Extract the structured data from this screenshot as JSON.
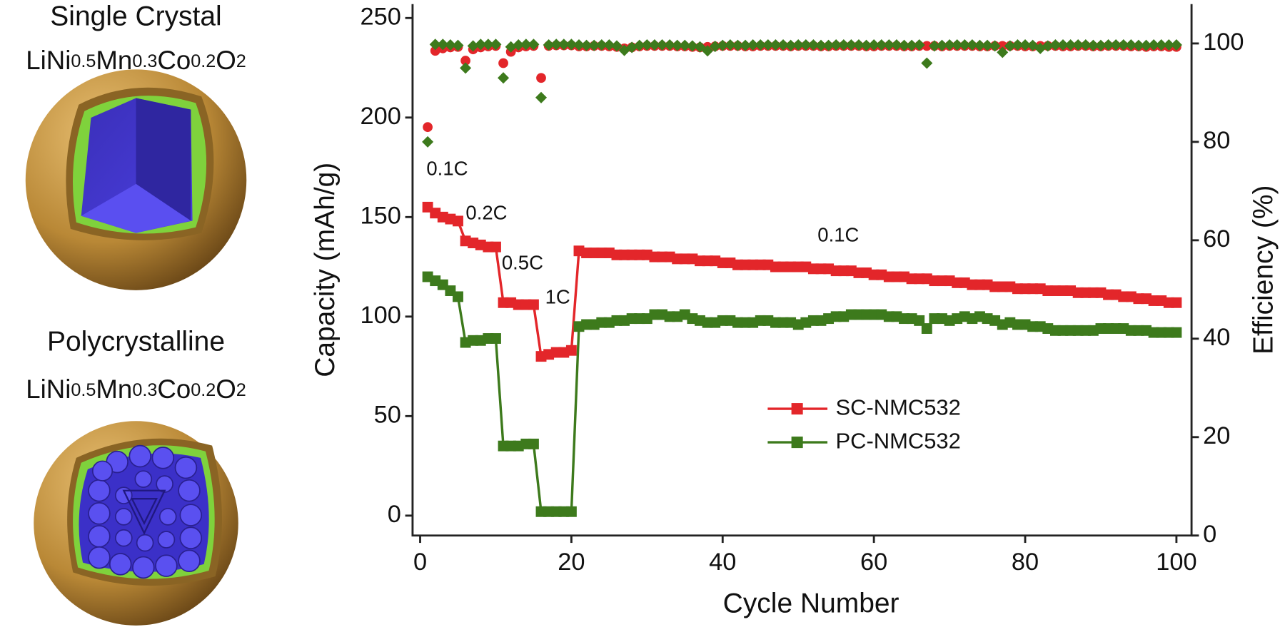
{
  "panels": [
    {
      "title": "Single Crystal",
      "formula": [
        "LiNi",
        "0.5",
        "Mn",
        "0.3",
        "Co",
        "0.2",
        "O",
        "2"
      ]
    },
    {
      "title": "Polycrystalline",
      "formula": [
        "LiNi",
        "0.5",
        "Mn",
        "0.3",
        "Co",
        "0.2",
        "O",
        "2"
      ]
    }
  ],
  "chart_data": {
    "type": "line",
    "x_label": "Cycle Number",
    "y_label": "Capacity (mAh/g)",
    "y2_label": "Efficiency (%)",
    "xlim": [
      -1,
      102
    ],
    "ylim": [
      -10,
      257
    ],
    "y2lim": [
      0,
      108
    ],
    "xticks": [
      0,
      20,
      40,
      60,
      80,
      100
    ],
    "yticks": [
      0,
      50,
      100,
      150,
      200,
      250
    ],
    "y2ticks": [
      0,
      20,
      40,
      60,
      80,
      100
    ],
    "annotations": [
      "0.1C",
      "0.2C",
      "0.5C",
      "1C",
      "0.1C"
    ],
    "x": [
      1,
      2,
      3,
      4,
      5,
      6,
      7,
      8,
      9,
      10,
      11,
      12,
      13,
      14,
      15,
      16,
      17,
      18,
      19,
      20,
      21,
      22,
      23,
      24,
      25,
      26,
      27,
      28,
      29,
      30,
      31,
      32,
      33,
      34,
      35,
      36,
      37,
      38,
      39,
      40,
      41,
      42,
      43,
      44,
      45,
      46,
      47,
      48,
      49,
      50,
      51,
      52,
      53,
      54,
      55,
      56,
      57,
      58,
      59,
      60,
      61,
      62,
      63,
      64,
      65,
      66,
      67,
      68,
      69,
      70,
      71,
      72,
      73,
      74,
      75,
      76,
      77,
      78,
      79,
      80,
      81,
      82,
      83,
      84,
      85,
      86,
      87,
      88,
      89,
      90,
      91,
      92,
      93,
      94,
      95,
      96,
      97,
      98,
      99,
      100
    ],
    "series": [
      {
        "name": "SC-NMC532",
        "type": "line",
        "color": "#e3262a",
        "values": [
          155,
          152,
          150,
          149,
          148,
          138,
          137,
          136,
          135,
          135,
          107,
          107,
          106,
          106,
          106,
          80,
          81,
          82,
          82,
          83,
          133,
          132,
          132,
          132,
          132,
          131,
          131,
          131,
          131,
          131,
          130,
          130,
          130,
          129,
          129,
          129,
          128,
          128,
          128,
          127,
          127,
          126,
          126,
          126,
          126,
          126,
          125,
          125,
          125,
          125,
          125,
          124,
          124,
          124,
          123,
          123,
          123,
          122,
          122,
          121,
          121,
          120,
          120,
          120,
          119,
          119,
          119,
          118,
          118,
          118,
          117,
          117,
          116,
          116,
          116,
          115,
          115,
          115,
          114,
          114,
          114,
          114,
          113,
          113,
          113,
          113,
          112,
          112,
          112,
          112,
          111,
          111,
          110,
          110,
          109,
          109,
          108,
          108,
          107,
          107
        ]
      },
      {
        "name": "PC-NMC532",
        "type": "line",
        "color": "#3d7a1c",
        "values": [
          120,
          118,
          116,
          113,
          110,
          87,
          88,
          88,
          89,
          89,
          35,
          35,
          35,
          36,
          36,
          2,
          2,
          2,
          2,
          2,
          95,
          96,
          96,
          97,
          97,
          98,
          98,
          99,
          99,
          99,
          101,
          101,
          100,
          100,
          101,
          99,
          98,
          97,
          97,
          98,
          98,
          97,
          97,
          97,
          98,
          98,
          97,
          97,
          97,
          96,
          97,
          98,
          98,
          99,
          100,
          100,
          101,
          101,
          101,
          101,
          101,
          100,
          100,
          99,
          99,
          98,
          94,
          99,
          99,
          98,
          99,
          100,
          99,
          100,
          99,
          98,
          96,
          97,
          96,
          96,
          95,
          95,
          94,
          93,
          93,
          93,
          93,
          93,
          93,
          94,
          94,
          94,
          94,
          93,
          93,
          93,
          92,
          92,
          92,
          92
        ]
      },
      {
        "type": "scatter",
        "axis": "y2",
        "marker": "circle",
        "color": "#e3262a",
        "values": [
          83,
          98.5,
          99,
          99.2,
          99.3,
          96.5,
          98.8,
          99.2,
          99.4,
          99.5,
          96,
          98.3,
          99.2,
          99.4,
          99.5,
          93,
          99.5,
          99.6,
          99.6,
          99.6,
          99.4,
          99.4,
          99.5,
          99.5,
          99.4,
          99.3,
          99,
          99.2,
          99.4,
          99.5,
          99.5,
          99.5,
          99.5,
          99.4,
          99.4,
          99.3,
          99.2,
          99.3,
          99.4,
          99.5,
          99.5,
          99.5,
          99.4,
          99.4,
          99.5,
          99.5,
          99.5,
          99.5,
          99.4,
          99.5,
          99.5,
          99.5,
          99.4,
          99.4,
          99.5,
          99.5,
          99.5,
          99.5,
          99.4,
          99.4,
          99.5,
          99.5,
          99.5,
          99.4,
          99.4,
          99.5,
          99.5,
          99.5,
          99.4,
          99.5,
          99.5,
          99.5,
          99.5,
          99.4,
          99.4,
          99.5,
          99.5,
          99.5,
          99.5,
          99.4,
          99.4,
          99.5,
          99.5,
          99.5,
          99.4,
          99.4,
          99.5,
          99.5,
          99.4,
          99.4,
          99.5,
          99.5,
          99.5,
          99.4,
          99.4,
          99.3,
          99.4,
          99.4,
          99.3,
          99.3
        ]
      },
      {
        "type": "scatter",
        "axis": "y2",
        "marker": "diamond",
        "color": "#3d7a1c",
        "values": [
          80,
          99.8,
          99.8,
          99.7,
          99.6,
          95,
          99.5,
          99.8,
          99.8,
          99.8,
          93,
          99.3,
          99.7,
          99.8,
          99.8,
          89,
          99.7,
          99.8,
          99.8,
          99.8,
          99.7,
          99.6,
          99.6,
          99.7,
          99.7,
          99.5,
          98.6,
          99.2,
          99.6,
          99.7,
          99.7,
          99.7,
          99.7,
          99.6,
          99.6,
          99.5,
          99.3,
          98.5,
          99.4,
          99.6,
          99.7,
          99.6,
          99.6,
          99.7,
          99.7,
          99.7,
          99.7,
          99.7,
          99.6,
          99.7,
          99.7,
          99.7,
          99.6,
          99.6,
          99.7,
          99.7,
          99.7,
          99.7,
          99.6,
          99.7,
          99.7,
          99.7,
          99.7,
          99.6,
          99.6,
          99.7,
          96,
          99.5,
          99.6,
          99.7,
          99.7,
          99.7,
          99.7,
          99.6,
          99.6,
          99.5,
          98.2,
          99.5,
          99.7,
          99.7,
          99.6,
          99,
          99.5,
          99.7,
          99.7,
          99.7,
          99.7,
          99.7,
          99.6,
          99.6,
          99.7,
          99.7,
          99.7,
          99.7,
          99.6,
          99.6,
          99.7,
          99.7,
          99.7,
          99.7
        ]
      }
    ]
  }
}
